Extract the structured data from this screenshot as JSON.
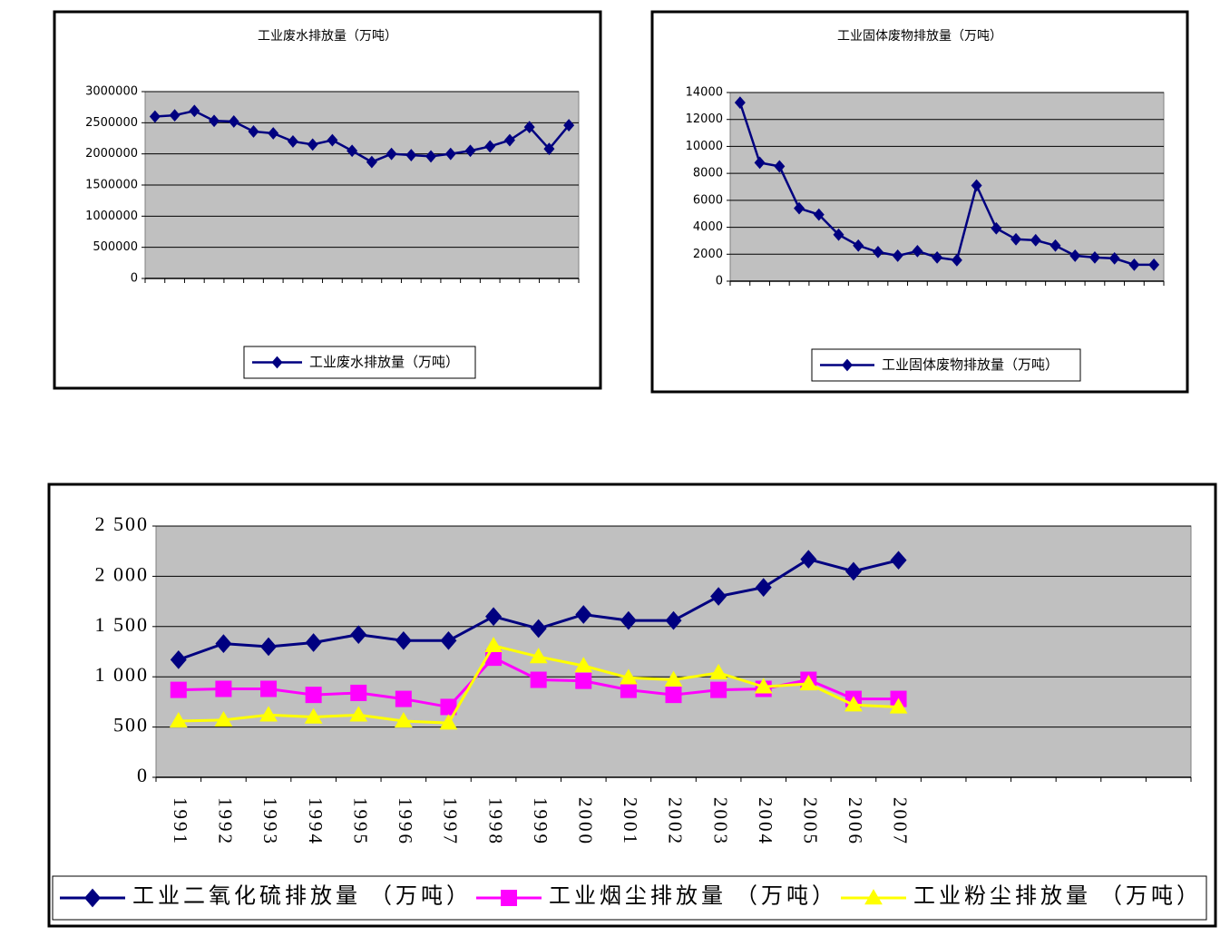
{
  "chart_data": [
    {
      "type": "line",
      "title": "工业废水排放量（万吨）",
      "categories": [
        null,
        null,
        null,
        null,
        null,
        null,
        null,
        null,
        null,
        null,
        null,
        null,
        null,
        null,
        null,
        null,
        null,
        null,
        null,
        null,
        null,
        null
      ],
      "series": [
        {
          "name": "工业废水排放量（万吨）",
          "color": "#000080",
          "marker": "diamond",
          "values": [
            2600000,
            2620000,
            2690000,
            2530000,
            2520000,
            2360000,
            2330000,
            2200000,
            2150000,
            2220000,
            2050000,
            1870000,
            2000000,
            1980000,
            1960000,
            2000000,
            2050000,
            2120000,
            2220000,
            2430000,
            2080000,
            2460000
          ]
        }
      ],
      "ylim": [
        0,
        3000000
      ],
      "yticks": [
        0,
        500000,
        1000000,
        1500000,
        2000000,
        2500000,
        3000000
      ],
      "grid": true,
      "plot_color": "#c0c0c0"
    },
    {
      "type": "line",
      "title": "工业固体废物排放量（万吨）",
      "categories": [
        null,
        null,
        null,
        null,
        null,
        null,
        null,
        null,
        null,
        null,
        null,
        null,
        null,
        null,
        null,
        null,
        null,
        null,
        null,
        null,
        null,
        null
      ],
      "series": [
        {
          "name": "工业固体废物排放量（万吨）",
          "color": "#000080",
          "marker": "diamond",
          "values": [
            13250,
            8790,
            8520,
            5410,
            4940,
            3450,
            2640,
            2160,
            1890,
            2230,
            1760,
            1560,
            7100,
            3920,
            3110,
            3040,
            2640,
            1890,
            1760,
            1690,
            1220,
            1220
          ]
        }
      ],
      "ylim": [
        0,
        14000
      ],
      "yticks": [
        0,
        2000,
        4000,
        6000,
        8000,
        10000,
        12000,
        14000
      ],
      "grid": true,
      "plot_color": "#c0c0c0"
    },
    {
      "type": "line",
      "categories": [
        "1991",
        "1992",
        "1993",
        "1994",
        "1995",
        "1996",
        "1997",
        "1998",
        "1999",
        "2000",
        "2001",
        "2002",
        "2003",
        "2004",
        "2005",
        "2006",
        "2007",
        null,
        null,
        null,
        null,
        null,
        null
      ],
      "series": [
        {
          "name": "工业二氧化硫排放量 （万吨）",
          "color": "#000080",
          "marker": "diamond",
          "values": [
            1170,
            1330,
            1300,
            1340,
            1420,
            1360,
            1360,
            1600,
            1480,
            1620,
            1560,
            1560,
            1800,
            1890,
            2170,
            2050,
            2160,
            null,
            null,
            null,
            null,
            null,
            null
          ]
        },
        {
          "name": "工业烟尘排放量 （万吨）",
          "color": "#ff00ff",
          "marker": "square",
          "values": [
            870,
            880,
            880,
            820,
            840,
            780,
            700,
            1190,
            970,
            960,
            870,
            820,
            870,
            880,
            970,
            780,
            780,
            null,
            null,
            null,
            null,
            null,
            null
          ]
        },
        {
          "name": "工业粉尘排放量 （万吨）",
          "color": "#ffff00",
          "marker": "triangle",
          "values": [
            560,
            570,
            620,
            600,
            620,
            560,
            540,
            1310,
            1200,
            1110,
            990,
            970,
            1040,
            900,
            930,
            720,
            700,
            null,
            null,
            null,
            null,
            null,
            null
          ]
        }
      ],
      "ylim": [
        0,
        2500
      ],
      "yticks": [
        0,
        500,
        {
          "value": 1000,
          "label": "1 000"
        },
        {
          "value": 1500,
          "label": "1 500"
        },
        {
          "value": 2000,
          "label": "2 000"
        },
        {
          "value": 2500,
          "label": "2 500"
        }
      ],
      "grid": true,
      "plot_color": "#c0c0c0"
    }
  ]
}
